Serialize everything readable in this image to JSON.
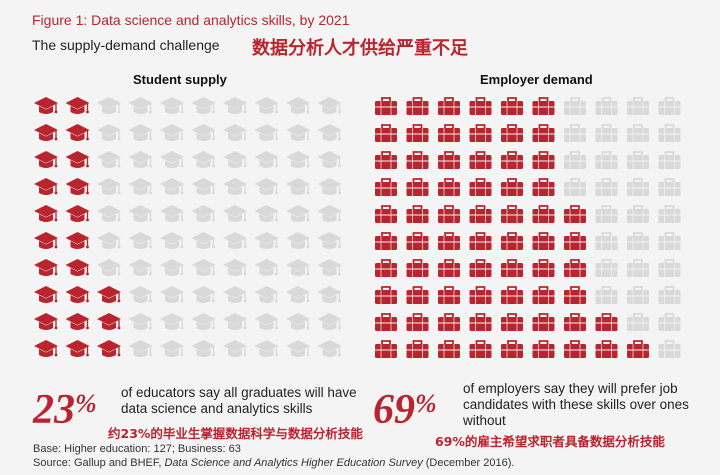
{
  "title": "Figure 1: Data science and analytics skills, by 2021",
  "subtitle": "The supply-demand challenge",
  "subtitle_cn": "数据分析人才供给严重不足",
  "colors": {
    "accent": "#b8252f",
    "inactive": "#d9d9d9"
  },
  "chart_data": [
    {
      "type": "pictograph",
      "title": "Student supply",
      "icon": "graduation-cap-icon",
      "rows": 10,
      "cols": 10,
      "filled_per_row": [
        2,
        2,
        2,
        2,
        2,
        2,
        2,
        3,
        3,
        3
      ],
      "percent": 23,
      "percent_label": "23%",
      "description": "of educators say all graduates will have data science and analytics skills",
      "description_cn": "约23%的毕业生掌握数据科学与数据分析技能"
    },
    {
      "type": "pictograph",
      "title": "Employer demand",
      "icon": "briefcase-icon",
      "rows": 10,
      "cols": 10,
      "filled_per_row": [
        6,
        6,
        6,
        6,
        7,
        7,
        7,
        7,
        8,
        9
      ],
      "percent": 69,
      "percent_label": "69%",
      "description": "of employers say they will prefer job candidates with these skills over ones without",
      "description_cn": "69%的雇主希望求职者具备数据分析技能"
    }
  ],
  "notes": {
    "base": "Base: Higher education: 127; Business: 63",
    "source_prefix": "Source: Gallup and BHEF, ",
    "source_title": "Data Science and Analytics Higher Education Survey",
    "source_suffix": " (December 2016)."
  }
}
